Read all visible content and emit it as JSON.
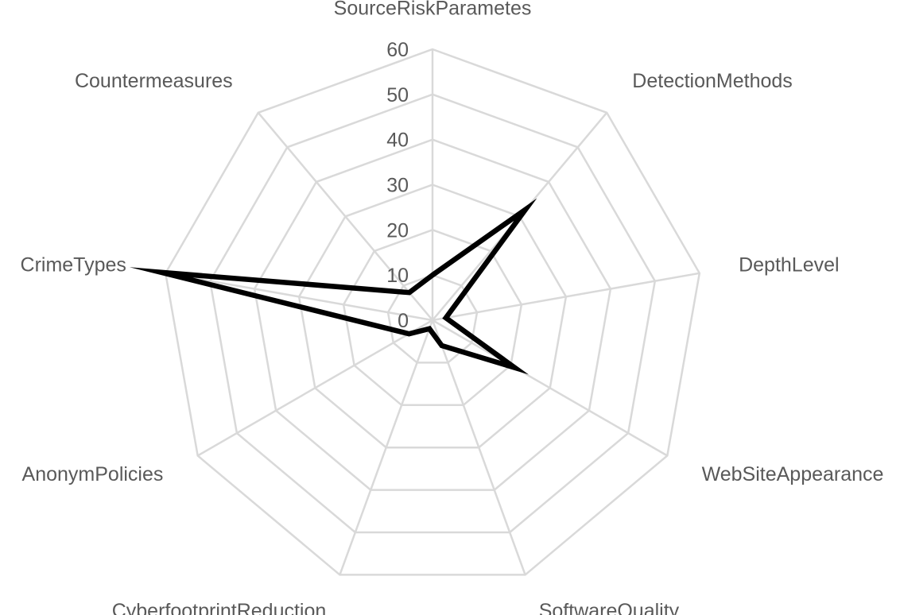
{
  "chart_data": {
    "type": "radar",
    "title": "",
    "categories": [
      "SourceRiskParametes",
      "DetectionMethods",
      "DepthLevel",
      "WebSiteAppearance",
      "SoftwareQuality",
      "CyberfootprintReduction",
      "AnonymPolicies",
      "CrimeTypes",
      "Countermeasures"
    ],
    "series": [
      {
        "values": [
          10,
          32,
          3,
          21,
          6,
          2,
          6,
          61,
          8
        ]
      }
    ],
    "rlim": [
      0,
      60
    ],
    "ticks": [
      0,
      10,
      20,
      30,
      40,
      50,
      60
    ],
    "grid": true,
    "legend": "none",
    "colors": {
      "series": "#000000",
      "grid": "#d9d9d9",
      "text": "#595959"
    }
  }
}
